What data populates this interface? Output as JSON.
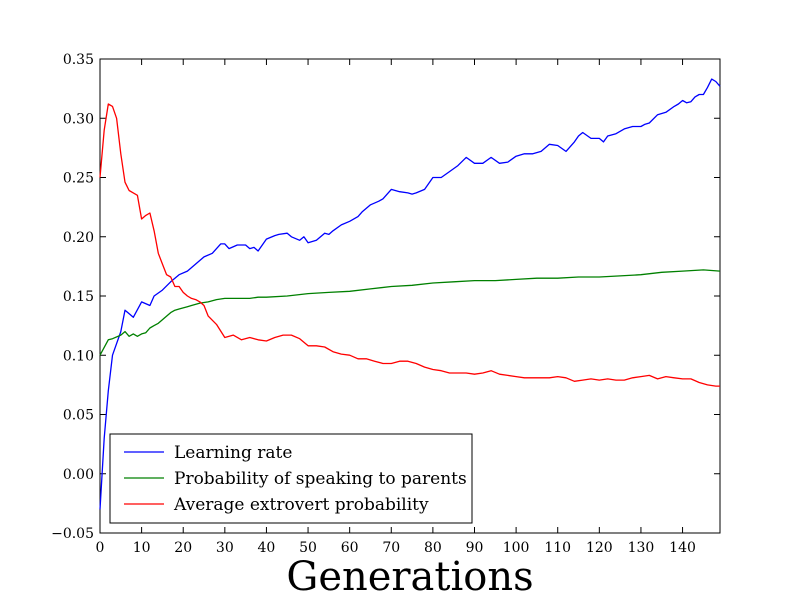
{
  "chart_data": {
    "type": "line",
    "xlabel": "Generations",
    "ylabel": "",
    "title": "",
    "xlim": [
      0,
      149
    ],
    "ylim": [
      -0.05,
      0.35
    ],
    "xticks": [
      "0",
      "10",
      "20",
      "30",
      "40",
      "50",
      "60",
      "70",
      "80",
      "90",
      "100",
      "110",
      "120",
      "130",
      "140"
    ],
    "yticks": [
      "−0.05",
      "0.00",
      "0.05",
      "0.10",
      "0.15",
      "0.20",
      "0.25",
      "0.30",
      "0.35"
    ],
    "grid": false,
    "legend_position": "lower-left",
    "series": [
      {
        "name": "Learning rate",
        "color": "#0000ff",
        "x": [
          0,
          1,
          2,
          3,
          5,
          6,
          8,
          10,
          12,
          13,
          15,
          17,
          19,
          21,
          23,
          25,
          27,
          29,
          30,
          31,
          33,
          35,
          36,
          37,
          38,
          40,
          42,
          43,
          45,
          46,
          48,
          49,
          50,
          52,
          54,
          55,
          56,
          58,
          60,
          62,
          63,
          65,
          67,
          68,
          70,
          72,
          74,
          75,
          76,
          78,
          80,
          82,
          84,
          86,
          88,
          90,
          92,
          94,
          96,
          98,
          100,
          102,
          104,
          106,
          108,
          110,
          112,
          114,
          115,
          116,
          118,
          120,
          121,
          122,
          124,
          126,
          128,
          130,
          131,
          132,
          134,
          136,
          138,
          139,
          140,
          141,
          142,
          143,
          144,
          145,
          146,
          147,
          148,
          149
        ],
        "y": [
          -0.03,
          0.03,
          0.07,
          0.1,
          0.12,
          0.138,
          0.132,
          0.145,
          0.142,
          0.15,
          0.155,
          0.162,
          0.168,
          0.171,
          0.177,
          0.183,
          0.186,
          0.194,
          0.194,
          0.19,
          0.193,
          0.193,
          0.19,
          0.191,
          0.188,
          0.198,
          0.201,
          0.202,
          0.203,
          0.2,
          0.197,
          0.2,
          0.195,
          0.197,
          0.203,
          0.202,
          0.205,
          0.21,
          0.213,
          0.217,
          0.221,
          0.227,
          0.23,
          0.232,
          0.24,
          0.238,
          0.237,
          0.236,
          0.237,
          0.24,
          0.25,
          0.25,
          0.255,
          0.26,
          0.267,
          0.262,
          0.262,
          0.267,
          0.262,
          0.263,
          0.268,
          0.27,
          0.27,
          0.272,
          0.278,
          0.277,
          0.272,
          0.28,
          0.285,
          0.288,
          0.283,
          0.283,
          0.28,
          0.285,
          0.287,
          0.291,
          0.293,
          0.293,
          0.295,
          0.296,
          0.303,
          0.305,
          0.31,
          0.312,
          0.315,
          0.313,
          0.314,
          0.318,
          0.32,
          0.32,
          0.326,
          0.333,
          0.331,
          0.327
        ]
      },
      {
        "name": "Probability of speaking to parents",
        "color": "#008000",
        "x": [
          0,
          2,
          3,
          5,
          6,
          7,
          8,
          9,
          10,
          11,
          12,
          13,
          14,
          15,
          16,
          17,
          18,
          19,
          20,
          21,
          22,
          24,
          26,
          28,
          30,
          32,
          34,
          36,
          38,
          40,
          45,
          50,
          55,
          60,
          65,
          70,
          75,
          80,
          85,
          90,
          95,
          100,
          105,
          110,
          115,
          120,
          125,
          130,
          135,
          140,
          145,
          149
        ],
        "y": [
          0.1,
          0.113,
          0.114,
          0.117,
          0.12,
          0.116,
          0.118,
          0.116,
          0.118,
          0.119,
          0.123,
          0.125,
          0.127,
          0.13,
          0.133,
          0.136,
          0.138,
          0.139,
          0.14,
          0.141,
          0.142,
          0.144,
          0.145,
          0.147,
          0.148,
          0.148,
          0.148,
          0.148,
          0.149,
          0.149,
          0.15,
          0.152,
          0.153,
          0.154,
          0.156,
          0.158,
          0.159,
          0.161,
          0.162,
          0.163,
          0.163,
          0.164,
          0.165,
          0.165,
          0.166,
          0.166,
          0.167,
          0.168,
          0.17,
          0.171,
          0.172,
          0.171
        ]
      },
      {
        "name": "Average extrovert probability",
        "color": "#ff0000",
        "x": [
          0,
          1,
          2,
          3,
          4,
          5,
          6,
          7,
          8,
          9,
          10,
          11,
          12,
          13,
          14,
          15,
          16,
          17,
          18,
          19,
          20,
          21,
          22,
          23,
          24,
          25,
          26,
          28,
          30,
          32,
          34,
          36,
          38,
          40,
          42,
          44,
          46,
          48,
          50,
          52,
          54,
          56,
          58,
          60,
          62,
          64,
          66,
          68,
          70,
          72,
          74,
          76,
          78,
          80,
          82,
          84,
          86,
          88,
          90,
          92,
          94,
          96,
          98,
          100,
          102,
          104,
          106,
          108,
          110,
          112,
          114,
          116,
          118,
          120,
          122,
          124,
          126,
          128,
          130,
          132,
          134,
          136,
          138,
          140,
          142,
          144,
          146,
          148,
          149
        ],
        "y": [
          0.25,
          0.29,
          0.312,
          0.31,
          0.3,
          0.27,
          0.246,
          0.239,
          0.237,
          0.235,
          0.215,
          0.218,
          0.22,
          0.205,
          0.186,
          0.177,
          0.168,
          0.166,
          0.158,
          0.158,
          0.153,
          0.15,
          0.148,
          0.147,
          0.145,
          0.142,
          0.133,
          0.126,
          0.115,
          0.117,
          0.113,
          0.115,
          0.113,
          0.112,
          0.115,
          0.117,
          0.117,
          0.114,
          0.108,
          0.108,
          0.107,
          0.103,
          0.101,
          0.1,
          0.097,
          0.097,
          0.095,
          0.093,
          0.093,
          0.095,
          0.095,
          0.093,
          0.09,
          0.088,
          0.087,
          0.085,
          0.085,
          0.085,
          0.084,
          0.085,
          0.087,
          0.084,
          0.083,
          0.082,
          0.081,
          0.081,
          0.081,
          0.081,
          0.082,
          0.081,
          0.078,
          0.079,
          0.08,
          0.079,
          0.08,
          0.079,
          0.079,
          0.081,
          0.082,
          0.083,
          0.08,
          0.082,
          0.081,
          0.08,
          0.08,
          0.077,
          0.075,
          0.074,
          0.074
        ]
      }
    ]
  }
}
